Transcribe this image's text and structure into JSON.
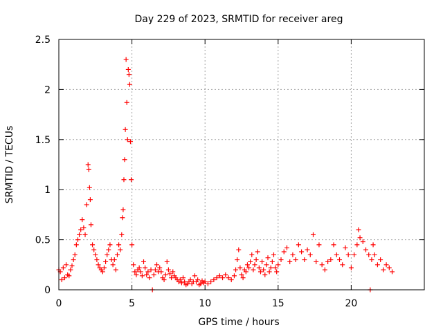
{
  "chart_data": {
    "type": "scatter",
    "title": "Day 229 of 2023, SRMTID for receiver areg",
    "xlabel": "GPS time / hours",
    "ylabel": "SRMTID / TECUs",
    "xlim": [
      0,
      25
    ],
    "ylim": [
      0,
      2.5
    ],
    "x_ticks": [
      0,
      5,
      10,
      15,
      20
    ],
    "x_tick_labels": [
      "0",
      "5",
      "10",
      "15",
      "20"
    ],
    "y_ticks": [
      0,
      0.5,
      1,
      1.5,
      2,
      2.5
    ],
    "y_tick_labels": [
      "0",
      "0.5",
      "1",
      "1.5",
      "2",
      "2.5"
    ],
    "grid": true,
    "marker": "+",
    "series": [
      {
        "name": "SRMTID",
        "color": "#ff0000",
        "points": [
          [
            0.0,
            0.2
          ],
          [
            0.1,
            0.18
          ],
          [
            0.2,
            0.1
          ],
          [
            0.3,
            0.22
          ],
          [
            0.4,
            0.12
          ],
          [
            0.5,
            0.25
          ],
          [
            0.6,
            0.15
          ],
          [
            0.7,
            0.14
          ],
          [
            0.8,
            0.2
          ],
          [
            0.9,
            0.24
          ],
          [
            1.0,
            0.3
          ],
          [
            1.1,
            0.35
          ],
          [
            1.2,
            0.45
          ],
          [
            1.3,
            0.5
          ],
          [
            1.4,
            0.55
          ],
          [
            1.5,
            0.6
          ],
          [
            1.6,
            0.7
          ],
          [
            1.7,
            0.62
          ],
          [
            1.8,
            0.55
          ],
          [
            1.9,
            0.85
          ],
          [
            2.0,
            1.25
          ],
          [
            2.05,
            1.2
          ],
          [
            2.1,
            1.02
          ],
          [
            2.15,
            0.9
          ],
          [
            2.2,
            0.65
          ],
          [
            2.3,
            0.45
          ],
          [
            2.4,
            0.4
          ],
          [
            2.5,
            0.35
          ],
          [
            2.6,
            0.3
          ],
          [
            2.7,
            0.25
          ],
          [
            2.8,
            0.22
          ],
          [
            2.9,
            0.2
          ],
          [
            3.0,
            0.18
          ],
          [
            3.1,
            0.22
          ],
          [
            3.2,
            0.28
          ],
          [
            3.3,
            0.35
          ],
          [
            3.4,
            0.4
          ],
          [
            3.5,
            0.45
          ],
          [
            3.6,
            0.3
          ],
          [
            3.7,
            0.25
          ],
          [
            3.8,
            0.3
          ],
          [
            3.9,
            0.2
          ],
          [
            4.0,
            0.35
          ],
          [
            4.1,
            0.45
          ],
          [
            4.2,
            0.4
          ],
          [
            4.3,
            0.55
          ],
          [
            4.35,
            0.72
          ],
          [
            4.4,
            0.8
          ],
          [
            4.45,
            1.1
          ],
          [
            4.5,
            1.3
          ],
          [
            4.55,
            1.6
          ],
          [
            4.6,
            2.3
          ],
          [
            4.65,
            1.87
          ],
          [
            4.7,
            1.5
          ],
          [
            4.75,
            2.2
          ],
          [
            4.8,
            2.15
          ],
          [
            4.85,
            2.05
          ],
          [
            4.9,
            1.48
          ],
          [
            4.95,
            1.1
          ],
          [
            5.0,
            0.45
          ],
          [
            5.1,
            0.25
          ],
          [
            5.2,
            0.18
          ],
          [
            5.3,
            0.15
          ],
          [
            5.4,
            0.2
          ],
          [
            5.5,
            0.22
          ],
          [
            5.6,
            0.18
          ],
          [
            5.7,
            0.14
          ],
          [
            5.8,
            0.28
          ],
          [
            5.9,
            0.22
          ],
          [
            6.0,
            0.15
          ],
          [
            6.1,
            0.18
          ],
          [
            6.2,
            0.12
          ],
          [
            6.3,
            0.2
          ],
          [
            6.4,
            0.0
          ],
          [
            6.5,
            0.15
          ],
          [
            6.6,
            0.2
          ],
          [
            6.7,
            0.25
          ],
          [
            6.8,
            0.18
          ],
          [
            6.9,
            0.22
          ],
          [
            7.0,
            0.18
          ],
          [
            7.1,
            0.12
          ],
          [
            7.2,
            0.1
          ],
          [
            7.3,
            0.15
          ],
          [
            7.4,
            0.28
          ],
          [
            7.5,
            0.2
          ],
          [
            7.6,
            0.16
          ],
          [
            7.7,
            0.12
          ],
          [
            7.8,
            0.18
          ],
          [
            7.9,
            0.14
          ],
          [
            8.0,
            0.12
          ],
          [
            8.1,
            0.1
          ],
          [
            8.2,
            0.08
          ],
          [
            8.3,
            0.1
          ],
          [
            8.4,
            0.07
          ],
          [
            8.5,
            0.12
          ],
          [
            8.6,
            0.08
          ],
          [
            8.7,
            0.05
          ],
          [
            8.8,
            0.06
          ],
          [
            8.9,
            0.08
          ],
          [
            9.0,
            0.1
          ],
          [
            9.1,
            0.06
          ],
          [
            9.2,
            0.08
          ],
          [
            9.3,
            0.14
          ],
          [
            9.4,
            0.08
          ],
          [
            9.5,
            0.1
          ],
          [
            9.6,
            0.05
          ],
          [
            9.7,
            0.06
          ],
          [
            9.8,
            0.09
          ],
          [
            9.9,
            0.07
          ],
          [
            10.0,
            0.08
          ],
          [
            10.2,
            0.06
          ],
          [
            10.4,
            0.08
          ],
          [
            10.6,
            0.1
          ],
          [
            10.8,
            0.12
          ],
          [
            11.0,
            0.14
          ],
          [
            11.2,
            0.12
          ],
          [
            11.4,
            0.15
          ],
          [
            11.6,
            0.12
          ],
          [
            11.8,
            0.1
          ],
          [
            12.0,
            0.14
          ],
          [
            12.1,
            0.2
          ],
          [
            12.2,
            0.3
          ],
          [
            12.3,
            0.4
          ],
          [
            12.4,
            0.22
          ],
          [
            12.5,
            0.15
          ],
          [
            12.6,
            0.12
          ],
          [
            12.7,
            0.2
          ],
          [
            12.8,
            0.18
          ],
          [
            12.9,
            0.25
          ],
          [
            13.0,
            0.22
          ],
          [
            13.1,
            0.28
          ],
          [
            13.2,
            0.35
          ],
          [
            13.3,
            0.2
          ],
          [
            13.4,
            0.25
          ],
          [
            13.5,
            0.3
          ],
          [
            13.6,
            0.38
          ],
          [
            13.7,
            0.22
          ],
          [
            13.8,
            0.18
          ],
          [
            13.9,
            0.28
          ],
          [
            14.0,
            0.2
          ],
          [
            14.1,
            0.15
          ],
          [
            14.2,
            0.25
          ],
          [
            14.3,
            0.32
          ],
          [
            14.4,
            0.18
          ],
          [
            14.5,
            0.22
          ],
          [
            14.6,
            0.28
          ],
          [
            14.7,
            0.35
          ],
          [
            14.8,
            0.22
          ],
          [
            14.9,
            0.18
          ],
          [
            15.0,
            0.25
          ],
          [
            15.2,
            0.3
          ],
          [
            15.4,
            0.38
          ],
          [
            15.6,
            0.42
          ],
          [
            15.8,
            0.28
          ],
          [
            16.0,
            0.35
          ],
          [
            16.2,
            0.3
          ],
          [
            16.4,
            0.45
          ],
          [
            16.6,
            0.38
          ],
          [
            16.8,
            0.3
          ],
          [
            17.0,
            0.4
          ],
          [
            17.2,
            0.35
          ],
          [
            17.4,
            0.55
          ],
          [
            17.6,
            0.28
          ],
          [
            17.8,
            0.45
          ],
          [
            18.0,
            0.25
          ],
          [
            18.2,
            0.2
          ],
          [
            18.4,
            0.28
          ],
          [
            18.6,
            0.3
          ],
          [
            18.8,
            0.45
          ],
          [
            19.0,
            0.35
          ],
          [
            19.2,
            0.3
          ],
          [
            19.4,
            0.25
          ],
          [
            19.6,
            0.42
          ],
          [
            19.8,
            0.35
          ],
          [
            20.0,
            0.22
          ],
          [
            20.2,
            0.35
          ],
          [
            20.4,
            0.45
          ],
          [
            20.5,
            0.6
          ],
          [
            20.6,
            0.52
          ],
          [
            20.8,
            0.48
          ],
          [
            21.0,
            0.4
          ],
          [
            21.2,
            0.35
          ],
          [
            21.3,
            0.0
          ],
          [
            21.4,
            0.3
          ],
          [
            21.5,
            0.45
          ],
          [
            21.6,
            0.35
          ],
          [
            21.8,
            0.25
          ],
          [
            22.0,
            0.3
          ],
          [
            22.2,
            0.2
          ],
          [
            22.4,
            0.25
          ],
          [
            22.6,
            0.22
          ],
          [
            22.8,
            0.18
          ]
        ]
      }
    ]
  }
}
